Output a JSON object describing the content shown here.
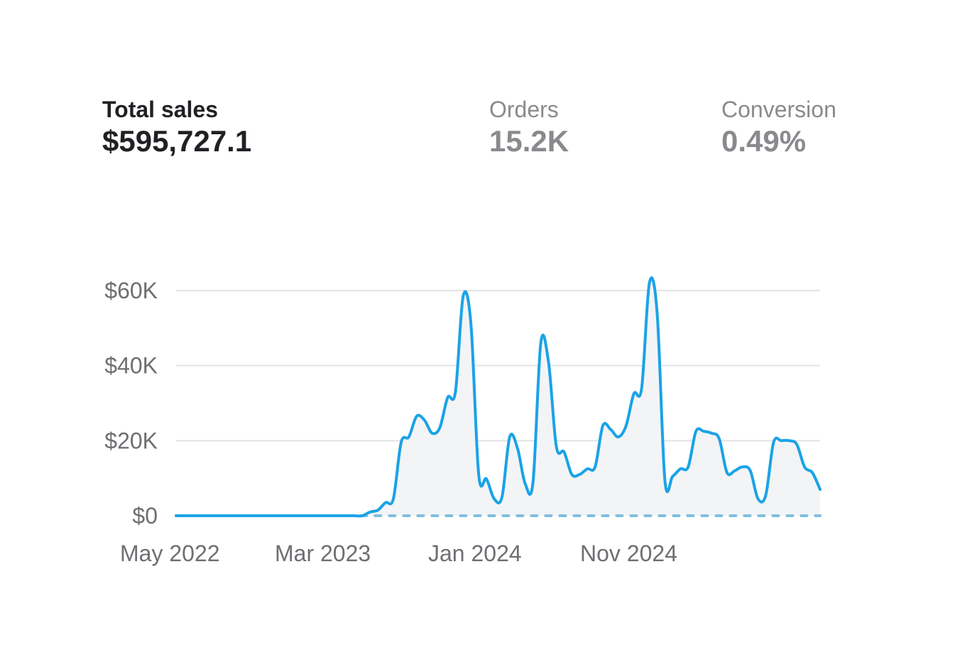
{
  "metrics": {
    "total_sales": {
      "label": "Total sales",
      "value": "$595,727.1"
    },
    "orders": {
      "label": "Orders",
      "value": "15.2K"
    },
    "conversion": {
      "label": "Conversion",
      "value": "0.49%"
    }
  },
  "colors": {
    "line": "#1aa3e6",
    "comparison_line": "#7fbfe0",
    "area_fill": "#f3f4f6",
    "grid": "#e3e3e6",
    "tick_text": "#6e6e73"
  },
  "chart_data": {
    "type": "line",
    "title": "",
    "xlabel": "",
    "ylabel": "",
    "ylim": [
      0,
      60000
    ],
    "yticks": [
      0,
      20000,
      40000,
      60000
    ],
    "ytick_labels": [
      "$0",
      "$20K",
      "$40K",
      "$60K"
    ],
    "xtick_labels": [
      "May 2022",
      "Mar 2023",
      "Jan 2024",
      "Nov 2024"
    ],
    "x_granularity": "half-month",
    "grid": true,
    "series": [
      {
        "role": "current",
        "style": "solid",
        "x": [
          "2022-05-01",
          "2022-05-15",
          "2022-06-01",
          "2022-06-15",
          "2022-07-01",
          "2022-07-15",
          "2022-08-01",
          "2022-08-15",
          "2022-09-01",
          "2022-09-15",
          "2022-10-01",
          "2022-10-15",
          "2022-11-01",
          "2022-11-15",
          "2022-12-01",
          "2022-12-15",
          "2023-01-01",
          "2023-01-15",
          "2023-02-01",
          "2023-02-15",
          "2023-03-01",
          "2023-03-15",
          "2023-04-01",
          "2023-04-15",
          "2023-05-01",
          "2023-05-15",
          "2023-06-01",
          "2023-06-15",
          "2023-07-01",
          "2023-07-15",
          "2023-08-01",
          "2023-08-15",
          "2023-09-01",
          "2023-09-15",
          "2023-10-01",
          "2023-10-15",
          "2023-11-01",
          "2023-11-15",
          "2023-12-01",
          "2023-12-15",
          "2024-01-01",
          "2024-01-15",
          "2024-02-01",
          "2024-02-15",
          "2024-03-01",
          "2024-03-15",
          "2024-04-01",
          "2024-04-15",
          "2024-05-01",
          "2024-05-15",
          "2024-06-01",
          "2024-06-15",
          "2024-07-01",
          "2024-07-15",
          "2024-08-01",
          "2024-08-15",
          "2024-09-01",
          "2024-09-15",
          "2024-10-01",
          "2024-10-15",
          "2024-11-01",
          "2024-11-15",
          "2024-12-01",
          "2024-12-15",
          "2025-01-01",
          "2025-01-15",
          "2025-02-01",
          "2025-02-15",
          "2025-03-01",
          "2025-03-15",
          "2025-04-01",
          "2025-04-15",
          "2025-05-01",
          "2025-05-15",
          "2025-06-01",
          "2025-06-15",
          "2025-07-01",
          "2025-07-15",
          "2025-08-01",
          "2025-08-15",
          "2025-09-01",
          "2025-09-15",
          "2025-10-01",
          "2025-10-15"
        ],
        "values": [
          0,
          0,
          0,
          0,
          0,
          0,
          0,
          0,
          0,
          0,
          0,
          0,
          0,
          0,
          0,
          0,
          0,
          0,
          0,
          0,
          0,
          0,
          0,
          0,
          0,
          1000,
          1500,
          3500,
          4500,
          19500,
          21000,
          26500,
          25500,
          22000,
          23500,
          31500,
          33000,
          58500,
          51000,
          11000,
          9800,
          4500,
          5000,
          21000,
          18000,
          8500,
          9000,
          46000,
          41000,
          18500,
          17000,
          11000,
          11000,
          12500,
          13000,
          24000,
          23000,
          21000,
          24000,
          32500,
          34000,
          62000,
          54000,
          9500,
          10500,
          12500,
          13000,
          22500,
          22500,
          22000,
          20500,
          11500,
          12000,
          13000,
          12000,
          4500,
          5500,
          19500,
          20000,
          20000,
          19000,
          13000,
          11500,
          7000
        ]
      },
      {
        "role": "comparison",
        "style": "dashed",
        "x_start": "2023-04-01",
        "x_end": "2025-10-15",
        "constant_value": 0
      }
    ]
  }
}
